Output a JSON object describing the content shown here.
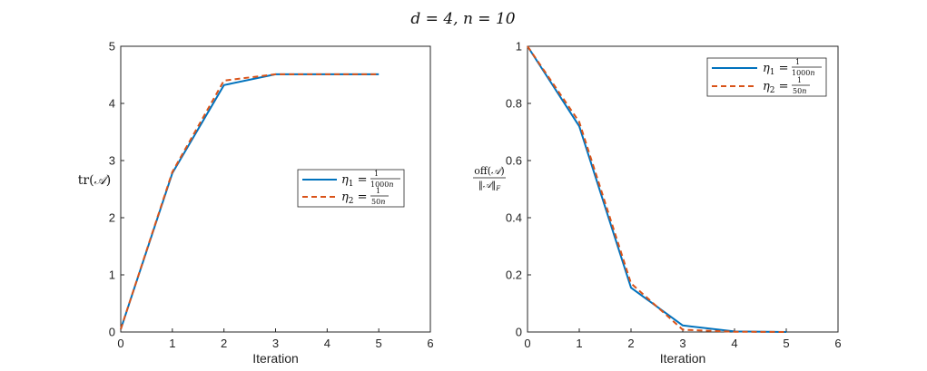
{
  "figure": {
    "title": "d = 4, n = 10"
  },
  "legend": [
    {
      "name": "η1 = 1/(1000n)",
      "color": "#0072BD",
      "dash": "solid"
    },
    {
      "name": "η2 = 1/(50n)",
      "color": "#D95319",
      "dash": "dashed"
    }
  ],
  "chart_data": [
    {
      "type": "line",
      "title": "",
      "xlabel": "Iteration",
      "ylabel": "tr(A)",
      "xlim": [
        0,
        6
      ],
      "ylim": [
        0,
        5
      ],
      "xticks": [
        0,
        1,
        2,
        3,
        4,
        5,
        6
      ],
      "yticks": [
        0,
        1,
        2,
        3,
        4,
        5
      ],
      "grid": false,
      "legend_position": "center-right",
      "x": [
        0,
        1,
        2,
        3,
        4,
        5
      ],
      "series": [
        {
          "name": "η1 = 1/(1000n)",
          "color": "#0072BD",
          "values": [
            0.05,
            2.78,
            4.32,
            4.51,
            4.51,
            4.51
          ]
        },
        {
          "name": "η2 = 1/(50n)",
          "color": "#D95319",
          "values": [
            0.05,
            2.8,
            4.4,
            4.51,
            4.51,
            4.51
          ]
        }
      ]
    },
    {
      "type": "line",
      "title": "",
      "xlabel": "Iteration",
      "ylabel": "off(A)/‖A‖F",
      "xlim": [
        0,
        6
      ],
      "ylim": [
        0,
        1
      ],
      "xticks": [
        0,
        1,
        2,
        3,
        4,
        5,
        6
      ],
      "yticks": [
        0,
        0.2,
        0.4,
        0.6,
        0.8,
        1
      ],
      "grid": false,
      "legend_position": "top-right",
      "x": [
        0,
        1,
        2,
        3,
        4,
        5
      ],
      "series": [
        {
          "name": "η1 = 1/(1000n)",
          "color": "#0072BD",
          "values": [
            1.0,
            0.72,
            0.155,
            0.023,
            0.002,
            0.0
          ]
        },
        {
          "name": "η2 = 1/(50n)",
          "color": "#D95319",
          "values": [
            1.0,
            0.735,
            0.17,
            0.008,
            0.001,
            0.0
          ]
        }
      ]
    }
  ]
}
